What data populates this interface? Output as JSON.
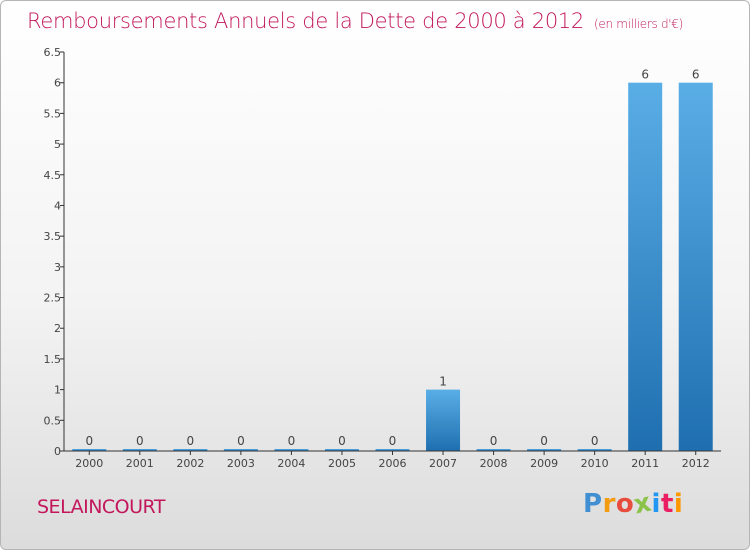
{
  "header": {
    "title": "Remboursements Annuels de la Dette de 2000 à 2012",
    "unit": "(en milliers d'€)"
  },
  "footer": {
    "commune": "SELAINCOURT",
    "logo_letters": [
      "P",
      "r",
      "o",
      "x",
      "i",
      "t",
      "i"
    ],
    "logo_colors": [
      "#3f8fd2",
      "#f39c12",
      "#e74c3c",
      "#8bc34a",
      "#2196f3",
      "#e91e63",
      "#ff9800"
    ]
  },
  "chart_data": {
    "type": "bar",
    "title": "Remboursements Annuels de la Dette de 2000 à 2012",
    "categories": [
      "2000",
      "2001",
      "2002",
      "2003",
      "2004",
      "2005",
      "2006",
      "2007",
      "2008",
      "2009",
      "2010",
      "2011",
      "2012"
    ],
    "values": [
      0,
      0,
      0,
      0,
      0,
      0,
      0,
      1,
      0,
      0,
      0,
      6,
      6
    ],
    "data_labels": [
      "0",
      "0",
      "0",
      "0",
      "0",
      "0",
      "0",
      "1",
      "0",
      "0",
      "0",
      "6",
      "6"
    ],
    "ylim": [
      0,
      6.5
    ],
    "yticks": [
      0,
      0.5,
      1,
      1.5,
      2,
      2.5,
      3,
      3.5,
      4,
      4.5,
      5,
      5.5,
      6,
      6.5
    ],
    "ytick_labels": [
      "0",
      "0.5",
      "1",
      "1.5",
      "2",
      "2.5",
      "3",
      "3.5",
      "4",
      "4.5",
      "5",
      "5.5",
      "6",
      "6.5"
    ],
    "grid": false,
    "colors": {
      "bar_top": "#5aaee6",
      "bar_bottom": "#1f6fb0",
      "axis": "#333333",
      "text": "#444444"
    }
  }
}
